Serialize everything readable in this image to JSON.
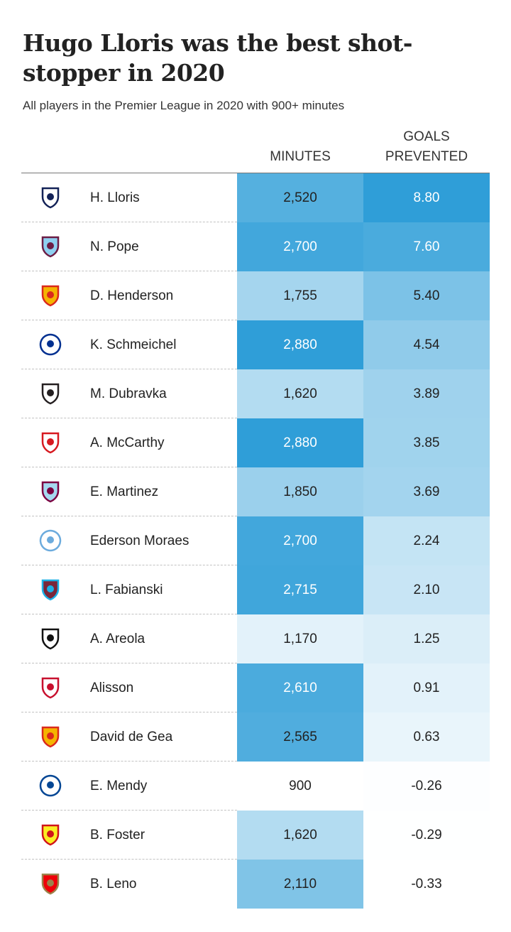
{
  "chart_data": {
    "type": "table",
    "title": "Hugo Lloris was the best shot-stopper in 2020",
    "subtitle": "All players in the Premier League in 2020 with 900+ minutes",
    "columns": [
      "MINUTES",
      "GOALS\nPREVENTED"
    ],
    "rows": [
      {
        "player": "H. Lloris",
        "club": "Tottenham Hotspur",
        "minutes": "2,520",
        "minutes_value": 2520,
        "gp": "8.80",
        "gp_value": 8.8
      },
      {
        "player": "N. Pope",
        "club": "Burnley",
        "minutes": "2,700",
        "minutes_value": 2700,
        "gp": "7.60",
        "gp_value": 7.6
      },
      {
        "player": "D. Henderson",
        "club": "Manchester United",
        "minutes": "1,755",
        "minutes_value": 1755,
        "gp": "5.40",
        "gp_value": 5.4
      },
      {
        "player": "K. Schmeichel",
        "club": "Leicester City",
        "minutes": "2,880",
        "minutes_value": 2880,
        "gp": "4.54",
        "gp_value": 4.54
      },
      {
        "player": "M. Dubravka",
        "club": "Newcastle United",
        "minutes": "1,620",
        "minutes_value": 1620,
        "gp": "3.89",
        "gp_value": 3.89
      },
      {
        "player": "A. McCarthy",
        "club": "Southampton",
        "minutes": "2,880",
        "minutes_value": 2880,
        "gp": "3.85",
        "gp_value": 3.85
      },
      {
        "player": "E. Martinez",
        "club": "Aston Villa",
        "minutes": "1,850",
        "minutes_value": 1850,
        "gp": "3.69",
        "gp_value": 3.69
      },
      {
        "player": "Ederson Moraes",
        "club": "Manchester City",
        "minutes": "2,700",
        "minutes_value": 2700,
        "gp": "2.24",
        "gp_value": 2.24
      },
      {
        "player": "L. Fabianski",
        "club": "West Ham United",
        "minutes": "2,715",
        "minutes_value": 2715,
        "gp": "2.10",
        "gp_value": 2.1
      },
      {
        "player": "A. Areola",
        "club": "Fulham",
        "minutes": "1,170",
        "minutes_value": 1170,
        "gp": "1.25",
        "gp_value": 1.25
      },
      {
        "player": "Alisson",
        "club": "Liverpool",
        "minutes": "2,610",
        "minutes_value": 2610,
        "gp": "0.91",
        "gp_value": 0.91
      },
      {
        "player": "David de Gea",
        "club": "Manchester United",
        "minutes": "2,565",
        "minutes_value": 2565,
        "gp": "0.63",
        "gp_value": 0.63
      },
      {
        "player": "E. Mendy",
        "club": "Chelsea",
        "minutes": "900",
        "minutes_value": 900,
        "gp": "-0.26",
        "gp_value": -0.26
      },
      {
        "player": "B. Foster",
        "club": "Watford",
        "minutes": "1,620",
        "minutes_value": 1620,
        "gp": "-0.29",
        "gp_value": -0.29
      },
      {
        "player": "B. Leno",
        "club": "Arsenal",
        "minutes": "2,110",
        "minutes_value": 2110,
        "gp": "-0.33",
        "gp_value": -0.33
      }
    ],
    "color_scale": {
      "low": "#ffffff",
      "high": "#2f9ed8"
    }
  }
}
